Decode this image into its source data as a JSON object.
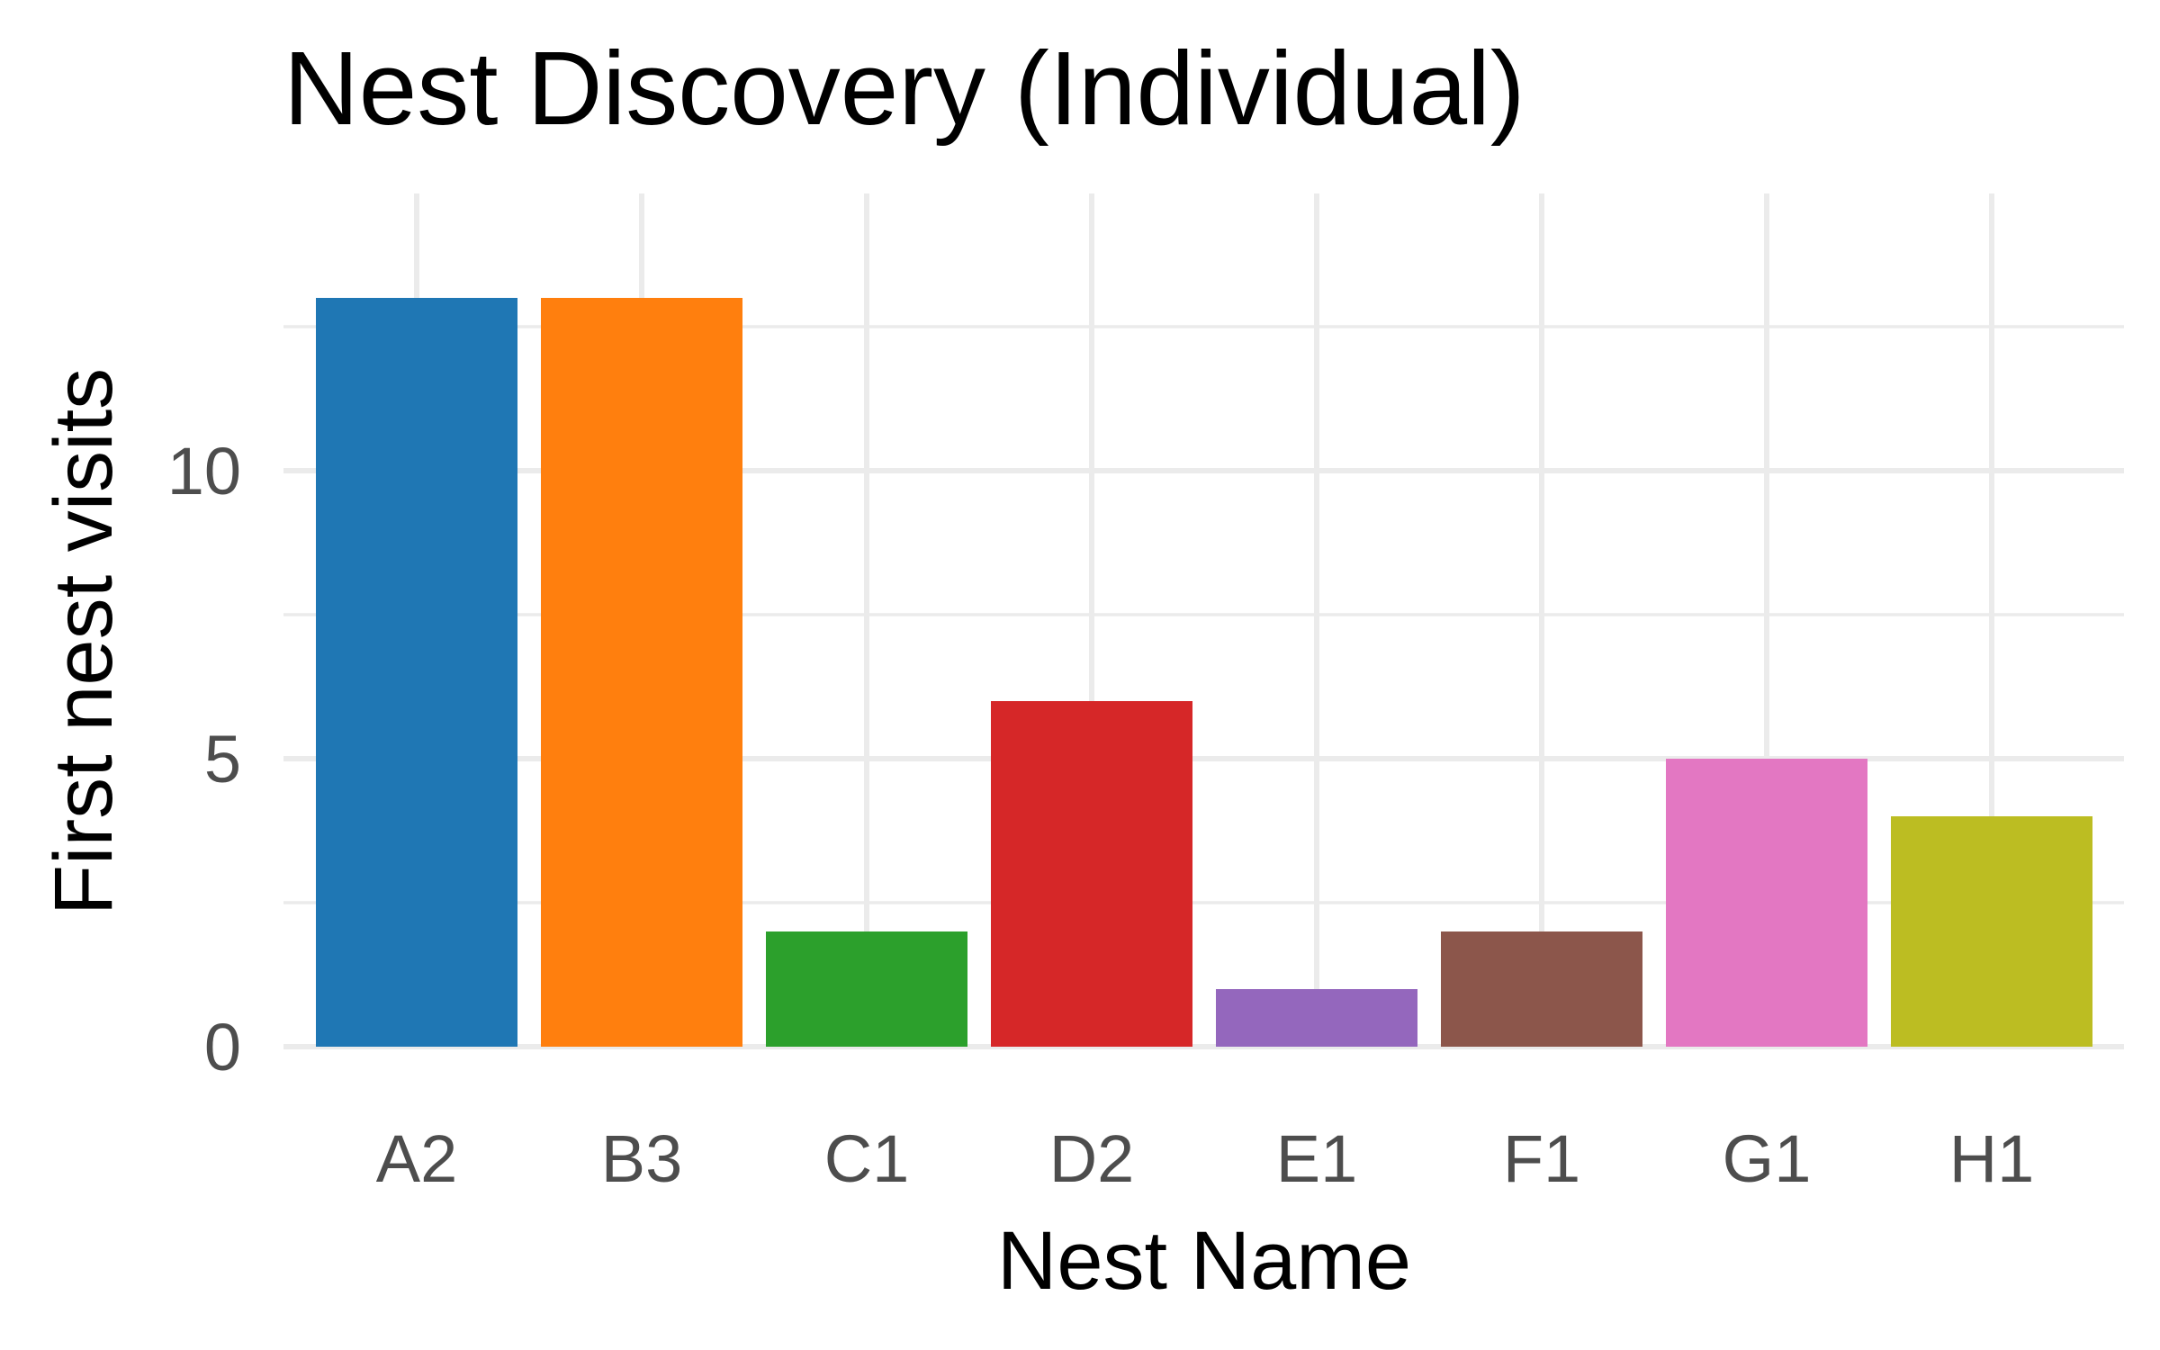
{
  "chart_data": {
    "type": "bar",
    "title": "Nest Discovery (Individual)",
    "xlabel": "Nest Name",
    "ylabel": "First nest visits",
    "categories": [
      "A2",
      "B3",
      "C1",
      "D2",
      "E1",
      "F1",
      "G1",
      "H1"
    ],
    "values": [
      13,
      13,
      2,
      6,
      1,
      2,
      5,
      4
    ],
    "colors": [
      "#1f77b4",
      "#ff7f0e",
      "#2ca02c",
      "#d62728",
      "#9467bd",
      "#8c564b",
      "#e377c2",
      "#bcbd22"
    ],
    "ylim": [
      0,
      13
    ],
    "y_ticks": [
      0,
      5,
      10
    ],
    "y_tick_labels": [
      "0",
      "5",
      "10"
    ],
    "grid": true,
    "legend": "none"
  }
}
